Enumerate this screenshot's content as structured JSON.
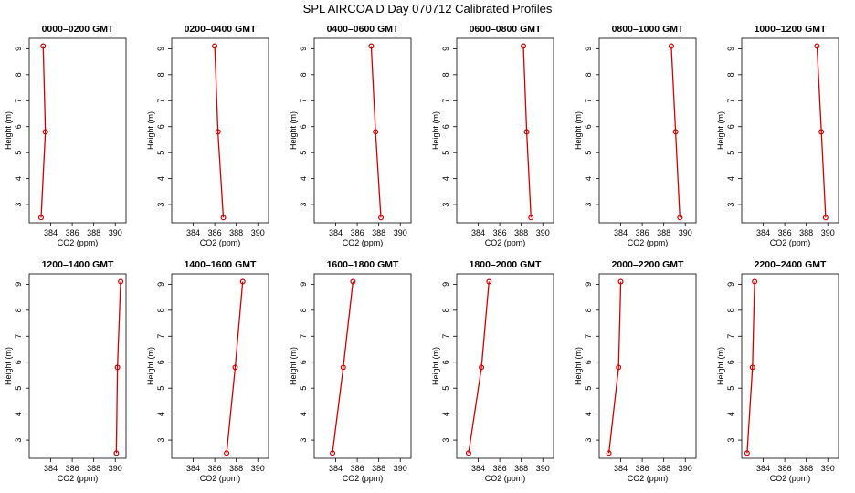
{
  "figure": {
    "title": "SPL AIRCOA D  Day 070712  Calibrated Profiles",
    "line_color": "#d40000",
    "marker_color": "#d40000"
  },
  "chart_data": [
    {
      "type": "line",
      "title": "0000–0200 GMT",
      "xlabel": "CO2 (ppm)",
      "ylabel": "Height (m)",
      "xlim": [
        382,
        391
      ],
      "ylim": [
        2.3,
        9.4
      ],
      "xticks": [
        384,
        386,
        388,
        390
      ],
      "yticks": [
        3,
        4,
        5,
        6,
        7,
        8,
        9
      ],
      "x": [
        383.3,
        383.5,
        383.1
      ],
      "y": [
        9.1,
        5.8,
        2.5
      ]
    },
    {
      "type": "line",
      "title": "0200–0400 GMT",
      "xlabel": "CO2 (ppm)",
      "ylabel": "Height (m)",
      "xlim": [
        382,
        391
      ],
      "ylim": [
        2.3,
        9.4
      ],
      "xticks": [
        384,
        386,
        388,
        390
      ],
      "yticks": [
        3,
        4,
        5,
        6,
        7,
        8,
        9
      ],
      "x": [
        386.0,
        386.3,
        386.8
      ],
      "y": [
        9.1,
        5.8,
        2.5
      ]
    },
    {
      "type": "line",
      "title": "0400–0600 GMT",
      "xlabel": "CO2 (ppm)",
      "ylabel": "Height (m)",
      "xlim": [
        382,
        391
      ],
      "ylim": [
        2.3,
        9.4
      ],
      "xticks": [
        384,
        386,
        388,
        390
      ],
      "yticks": [
        3,
        4,
        5,
        6,
        7,
        8,
        9
      ],
      "x": [
        387.3,
        387.7,
        388.2
      ],
      "y": [
        9.1,
        5.8,
        2.5
      ]
    },
    {
      "type": "line",
      "title": "0600–0800 GMT",
      "xlabel": "CO2 (ppm)",
      "ylabel": "Height (m)",
      "xlim": [
        382,
        391
      ],
      "ylim": [
        2.3,
        9.4
      ],
      "xticks": [
        384,
        386,
        388,
        390
      ],
      "yticks": [
        3,
        4,
        5,
        6,
        7,
        8,
        9
      ],
      "x": [
        388.2,
        388.5,
        388.9
      ],
      "y": [
        9.1,
        5.8,
        2.5
      ]
    },
    {
      "type": "line",
      "title": "0800–1000 GMT",
      "xlabel": "CO2 (ppm)",
      "ylabel": "Height (m)",
      "xlim": [
        382,
        391
      ],
      "ylim": [
        2.3,
        9.4
      ],
      "xticks": [
        384,
        386,
        388,
        390
      ],
      "yticks": [
        3,
        4,
        5,
        6,
        7,
        8,
        9
      ],
      "x": [
        388.7,
        389.1,
        389.5
      ],
      "y": [
        9.1,
        5.8,
        2.5
      ]
    },
    {
      "type": "line",
      "title": "1000–1200 GMT",
      "xlabel": "CO2 (ppm)",
      "ylabel": "Height (m)",
      "xlim": [
        382,
        391
      ],
      "ylim": [
        2.3,
        9.4
      ],
      "xticks": [
        384,
        386,
        388,
        390
      ],
      "yticks": [
        3,
        4,
        5,
        6,
        7,
        8,
        9
      ],
      "x": [
        389.0,
        389.4,
        389.8
      ],
      "y": [
        9.1,
        5.8,
        2.5
      ]
    },
    {
      "type": "line",
      "title": "1200–1400 GMT",
      "xlabel": "CO2 (ppm)",
      "ylabel": "Height (m)",
      "xlim": [
        382,
        391
      ],
      "ylim": [
        2.3,
        9.4
      ],
      "xticks": [
        384,
        386,
        388,
        390
      ],
      "yticks": [
        3,
        4,
        5,
        6,
        7,
        8,
        9
      ],
      "x": [
        390.5,
        390.2,
        390.1
      ],
      "y": [
        9.1,
        5.8,
        2.5
      ]
    },
    {
      "type": "line",
      "title": "1400–1600 GMT",
      "xlabel": "CO2 (ppm)",
      "ylabel": "Height (m)",
      "xlim": [
        382,
        391
      ],
      "ylim": [
        2.3,
        9.4
      ],
      "xticks": [
        384,
        386,
        388,
        390
      ],
      "yticks": [
        3,
        4,
        5,
        6,
        7,
        8,
        9
      ],
      "x": [
        388.6,
        387.9,
        387.1
      ],
      "y": [
        9.1,
        5.8,
        2.5
      ]
    },
    {
      "type": "line",
      "title": "1600–1800 GMT",
      "xlabel": "CO2 (ppm)",
      "ylabel": "Height (m)",
      "xlim": [
        382,
        391
      ],
      "ylim": [
        2.3,
        9.4
      ],
      "xticks": [
        384,
        386,
        388,
        390
      ],
      "yticks": [
        3,
        4,
        5,
        6,
        7,
        8,
        9
      ],
      "x": [
        385.6,
        384.7,
        383.7
      ],
      "y": [
        9.1,
        5.8,
        2.5
      ]
    },
    {
      "type": "line",
      "title": "1800–2000 GMT",
      "xlabel": "CO2 (ppm)",
      "ylabel": "Height (m)",
      "xlim": [
        382,
        391
      ],
      "ylim": [
        2.3,
        9.4
      ],
      "xticks": [
        384,
        386,
        388,
        390
      ],
      "yticks": [
        3,
        4,
        5,
        6,
        7,
        8,
        9
      ],
      "x": [
        385.0,
        384.3,
        383.1
      ],
      "y": [
        9.1,
        5.8,
        2.5
      ]
    },
    {
      "type": "line",
      "title": "2000–2200 GMT",
      "xlabel": "CO2 (ppm)",
      "ylabel": "Height (m)",
      "xlim": [
        382,
        391
      ],
      "ylim": [
        2.3,
        9.4
      ],
      "xticks": [
        384,
        386,
        388,
        390
      ],
      "yticks": [
        3,
        4,
        5,
        6,
        7,
        8,
        9
      ],
      "x": [
        384.0,
        383.8,
        382.9
      ],
      "y": [
        9.1,
        5.8,
        2.5
      ]
    },
    {
      "type": "line",
      "title": "2200–2400 GMT",
      "xlabel": "CO2 (ppm)",
      "ylabel": "Height (m)",
      "xlim": [
        382,
        391
      ],
      "ylim": [
        2.3,
        9.4
      ],
      "xticks": [
        384,
        386,
        388,
        390
      ],
      "yticks": [
        3,
        4,
        5,
        6,
        7,
        8,
        9
      ],
      "x": [
        383.2,
        383.0,
        382.5
      ],
      "y": [
        9.1,
        5.8,
        2.5
      ]
    }
  ]
}
